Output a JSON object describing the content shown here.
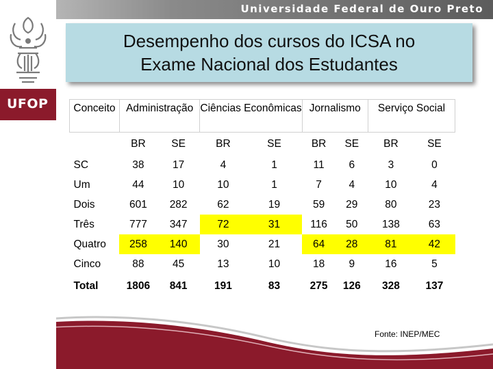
{
  "header": {
    "university": "Universidade Federal de Ouro Preto"
  },
  "branding": {
    "badge": "UFOP",
    "color": "#8b1a2b"
  },
  "slide": {
    "title": "Desempenho dos cursos do ICSA no\nExame Nacional dos Estudantes"
  },
  "table": {
    "header": {
      "concept": "Conceito",
      "courses": [
        "Administração",
        "Ciências Econômicas",
        "Jornalismo",
        "Serviço Social"
      ]
    },
    "subheaders": [
      "BR",
      "SE",
      "BR",
      "SE",
      "BR",
      "SE",
      "BR",
      "SE"
    ],
    "rows": [
      {
        "label": "SC",
        "values": [
          "38",
          "17",
          "4",
          "1",
          "11",
          "6",
          "3",
          "0"
        ]
      },
      {
        "label": "Um",
        "values": [
          "44",
          "10",
          "10",
          "1",
          "7",
          "4",
          "10",
          "4"
        ]
      },
      {
        "label": "Dois",
        "values": [
          "601",
          "282",
          "62",
          "19",
          "59",
          "29",
          "80",
          "23"
        ]
      },
      {
        "label": "Três",
        "values": [
          "777",
          "347",
          "72",
          "31",
          "116",
          "50",
          "138",
          "63"
        ]
      },
      {
        "label": "Quatro",
        "values": [
          "258",
          "140",
          "30",
          "21",
          "64",
          "28",
          "81",
          "42"
        ]
      },
      {
        "label": "Cinco",
        "values": [
          "88",
          "45",
          "13",
          "10",
          "18",
          "9",
          "16",
          "5"
        ]
      },
      {
        "label": "Total",
        "values": [
          "1806",
          "841",
          "191",
          "83",
          "275",
          "126",
          "328",
          "137"
        ]
      }
    ],
    "highlight_color": "#ffff00"
  },
  "footer": {
    "source": "Fonte: INEP/MEC"
  }
}
